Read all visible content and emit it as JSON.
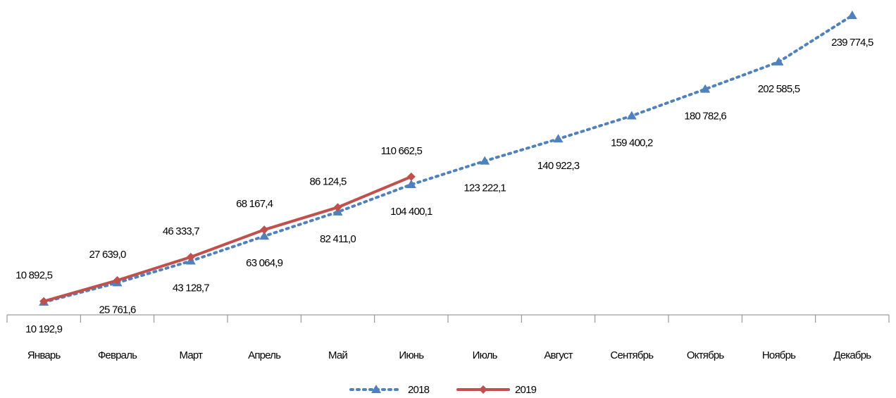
{
  "chart_data": {
    "type": "line",
    "categories": [
      "Январь",
      "Февраль",
      "Март",
      "Апрель",
      "Май",
      "Июнь",
      "Июль",
      "Август",
      "Сентябрь",
      "Октябрь",
      "Ноябрь",
      "Декабрь"
    ],
    "series": [
      {
        "name": "2018",
        "color": "#4f81bd",
        "marker": "triangle",
        "line_style": "dotted",
        "values": [
          10192.9,
          25761.6,
          43128.7,
          63064.9,
          82411.0,
          104400.1,
          123222.1,
          140922.3,
          159400.2,
          180782.6,
          202585.5,
          239774.5
        ],
        "value_labels": [
          "10 192,9",
          "25 761,6",
          "43 128,7",
          "63 064,9",
          "82 411,0",
          "104 400,1",
          "123 222,1",
          "140 922,3",
          "159 400,2",
          "180 782,6",
          "202 585,5",
          "239 774,5"
        ]
      },
      {
        "name": "2019",
        "color": "#c0504d",
        "marker": "diamond",
        "line_style": "solid",
        "values": [
          10892.5,
          27639.0,
          46333.7,
          68167.4,
          86124.5,
          110662.5,
          null,
          null,
          null,
          null,
          null,
          null
        ],
        "value_labels": [
          "10 892,5",
          "27 639,0",
          "46 333,7",
          "68 167,4",
          "86 124,5",
          "110 662,5",
          null,
          null,
          null,
          null,
          null,
          null
        ]
      }
    ],
    "legend": "bottom"
  }
}
